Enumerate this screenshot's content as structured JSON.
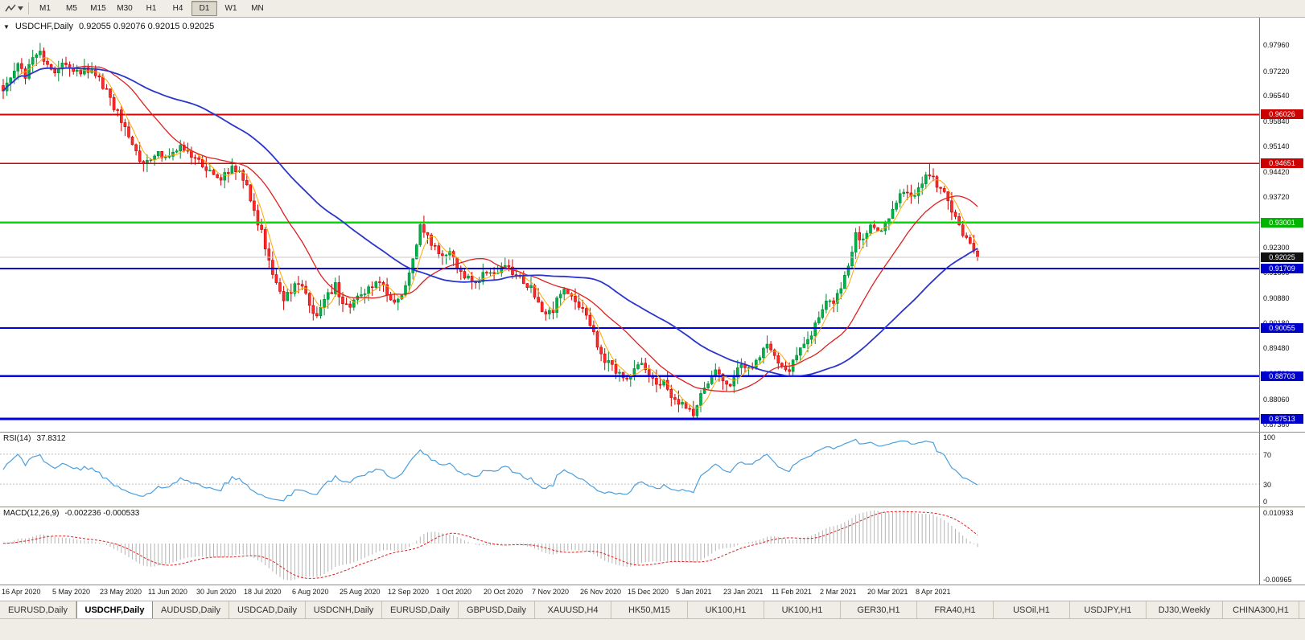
{
  "toolbar": {
    "timeframes": [
      "M1",
      "M5",
      "M15",
      "M30",
      "H1",
      "H4",
      "D1",
      "W1",
      "MN"
    ],
    "active_timeframe": "D1"
  },
  "chart": {
    "symbol_period": "USDCHF,Daily",
    "ohlc": "0.92055 0.92076 0.92015 0.92025",
    "bid": "0.92025"
  },
  "rsi": {
    "label": "RSI(14)",
    "value": "37.8312",
    "color": "#4d9fdc",
    "levels": [
      "100",
      "70",
      "30",
      "0"
    ],
    "dashed_levels": [
      70,
      30
    ]
  },
  "macd": {
    "label": "MACD(12,26,9)",
    "values": "-0.002236 -0.000533",
    "scale_labels": [
      "0.010933",
      "-0.00965"
    ],
    "histogram_color": "#b4b4b4",
    "signal_color": "#e02020"
  },
  "tabs": [
    {
      "label": "EURUSD,Daily",
      "active": false
    },
    {
      "label": "USDCHF,Daily",
      "active": true
    },
    {
      "label": "AUDUSD,Daily",
      "active": false
    },
    {
      "label": "USDCAD,Daily",
      "active": false
    },
    {
      "label": "USDCNH,Daily",
      "active": false
    },
    {
      "label": "EURUSD,Daily",
      "active": false
    },
    {
      "label": "GBPUSD,Daily",
      "active": false
    },
    {
      "label": "XAUUSD,H4",
      "active": false
    },
    {
      "label": "HK50,M15",
      "active": false
    },
    {
      "label": "UK100,H1",
      "active": false
    },
    {
      "label": "UK100,H1",
      "active": false
    },
    {
      "label": "GER30,H1",
      "active": false
    },
    {
      "label": "FRA40,H1",
      "active": false
    },
    {
      "label": "USOil,H1",
      "active": false
    },
    {
      "label": "USDJPY,H1",
      "active": false
    },
    {
      "label": "DJ30,Weekly",
      "active": false
    },
    {
      "label": "CHINA300,H1",
      "active": false
    }
  ],
  "chart_data": {
    "type": "candlestick",
    "symbol": "USDCHF",
    "timeframe": "Daily",
    "y_range": [
      0.8715,
      0.9873
    ],
    "candle_count": 265,
    "x_label_step": 13,
    "x_labels": [
      "16 Apr 2020",
      "5 May 2020",
      "23 May 2020",
      "11 Jun 2020",
      "30 Jun 2020",
      "18 Jul 2020",
      "6 Aug 2020",
      "25 Aug 2020",
      "12 Sep 2020",
      "1 Oct 2020",
      "20 Oct 2020",
      "7 Nov 2020",
      "26 Nov 2020",
      "15 Dec 2020",
      "5 Jan 2021",
      "23 Jan 2021",
      "11 Feb 2021",
      "2 Mar 2021",
      "20 Mar 2021",
      "8 Apr 2021"
    ],
    "scale_labels": [
      "0.97960",
      "0.97220",
      "0.96540",
      "0.95840",
      "0.95140",
      "0.94420",
      "0.93720",
      "0.93020",
      "0.92300",
      "0.91600",
      "0.90880",
      "0.90180",
      "0.89480",
      "0.88780",
      "0.88060",
      "0.87360"
    ],
    "h_lines": [
      {
        "label": "0.96026",
        "price": 0.96026,
        "tag_color": "#cc0000",
        "line_color": "#dd0000",
        "line_width": 2
      },
      {
        "label": "0.94651",
        "price": 0.94651,
        "tag_color": "#cc0000",
        "line_color": "#dd0000",
        "line_width": 1.5
      },
      {
        "label": "0.93001",
        "price": 0.93001,
        "tag_color": "#00b400",
        "line_color": "#00dd00",
        "line_width": 2.5
      },
      {
        "label": "0.91709",
        "price": 0.91709,
        "tag_color": "#0000cc",
        "line_color": "#0000dd",
        "line_width": 2
      },
      {
        "label": "0.90055",
        "price": 0.90055,
        "tag_color": "#0000cc",
        "line_color": "#0000dd",
        "line_width": 2
      },
      {
        "label": "0.88703",
        "price": 0.88703,
        "tag_color": "#0000cc",
        "line_color": "#0000dd",
        "line_width": 2.5
      },
      {
        "label": "0.87513",
        "price": 0.87513,
        "tag_color": "#0000cc",
        "line_color": "#0000dd",
        "line_width": 3
      },
      {
        "label": "0.92025",
        "price": 0.92025,
        "tag_color": "#111111",
        "line_color": "#c8c8c8",
        "line_width": 1
      }
    ],
    "colors": {
      "up_fill": "#00b24a",
      "up_stroke": "#008a36",
      "down_fill": "#ff2a2a",
      "down_stroke": "#cc0000"
    },
    "moving_averages": [
      {
        "name": "fast-ma",
        "period": 5,
        "color": "#ffa800",
        "width": 1
      },
      {
        "name": "medium-ma",
        "period": 20,
        "color": "#e02020",
        "width": 1.3
      },
      {
        "name": "slow-ma",
        "period": 52,
        "color": "#2a35cc",
        "width": 1.8
      }
    ],
    "close_anchors": [
      [
        0,
        0.967
      ],
      [
        2,
        0.9705
      ],
      [
        4,
        0.9738
      ],
      [
        6,
        0.9712
      ],
      [
        8,
        0.9752
      ],
      [
        10,
        0.977
      ],
      [
        12,
        0.9745
      ],
      [
        14,
        0.9708
      ],
      [
        16,
        0.9738
      ],
      [
        18,
        0.9742
      ],
      [
        20,
        0.9716
      ],
      [
        22,
        0.9724
      ],
      [
        24,
        0.9722
      ],
      [
        26,
        0.97
      ],
      [
        28,
        0.9668
      ],
      [
        30,
        0.9625
      ],
      [
        32,
        0.9585
      ],
      [
        34,
        0.9548
      ],
      [
        36,
        0.9505
      ],
      [
        38,
        0.9455
      ],
      [
        40,
        0.9478
      ],
      [
        42,
        0.9502
      ],
      [
        44,
        0.9482
      ],
      [
        46,
        0.9498
      ],
      [
        48,
        0.9512
      ],
      [
        50,
        0.9505
      ],
      [
        52,
        0.9478
      ],
      [
        54,
        0.9465
      ],
      [
        56,
        0.9442
      ],
      [
        58,
        0.9415
      ],
      [
        60,
        0.9438
      ],
      [
        62,
        0.9458
      ],
      [
        64,
        0.944
      ],
      [
        66,
        0.9395
      ],
      [
        68,
        0.933
      ],
      [
        70,
        0.927
      ],
      [
        72,
        0.9185
      ],
      [
        74,
        0.9138
      ],
      [
        76,
        0.9085
      ],
      [
        78,
        0.9112
      ],
      [
        80,
        0.9138
      ],
      [
        82,
        0.9092
      ],
      [
        84,
        0.9038
      ],
      [
        86,
        0.9062
      ],
      [
        88,
        0.9098
      ],
      [
        90,
        0.9122
      ],
      [
        92,
        0.9078
      ],
      [
        94,
        0.9058
      ],
      [
        96,
        0.9088
      ],
      [
        98,
        0.9102
      ],
      [
        100,
        0.9128
      ],
      [
        102,
        0.9142
      ],
      [
        104,
        0.9102
      ],
      [
        106,
        0.9082
      ],
      [
        108,
        0.9108
      ],
      [
        110,
        0.9152
      ],
      [
        112,
        0.9235
      ],
      [
        113,
        0.9288
      ],
      [
        115,
        0.9262
      ],
      [
        117,
        0.9228
      ],
      [
        119,
        0.9202
      ],
      [
        121,
        0.9218
      ],
      [
        123,
        0.9178
      ],
      [
        125,
        0.9152
      ],
      [
        127,
        0.9128
      ],
      [
        129,
        0.9142
      ],
      [
        131,
        0.9158
      ],
      [
        133,
        0.9148
      ],
      [
        135,
        0.9168
      ],
      [
        137,
        0.9172
      ],
      [
        139,
        0.9152
      ],
      [
        141,
        0.9128
      ],
      [
        143,
        0.9118
      ],
      [
        145,
        0.9068
      ],
      [
        147,
        0.9038
      ],
      [
        149,
        0.9058
      ],
      [
        151,
        0.9102
      ],
      [
        153,
        0.9108
      ],
      [
        155,
        0.9082
      ],
      [
        157,
        0.9058
      ],
      [
        159,
        0.9018
      ],
      [
        161,
        0.8958
      ],
      [
        163,
        0.8918
      ],
      [
        165,
        0.8898
      ],
      [
        167,
        0.8878
      ],
      [
        169,
        0.8862
      ],
      [
        171,
        0.8898
      ],
      [
        173,
        0.8908
      ],
      [
        175,
        0.8868
      ],
      [
        177,
        0.8848
      ],
      [
        179,
        0.8862
      ],
      [
        181,
        0.8818
      ],
      [
        183,
        0.8798
      ],
      [
        185,
        0.8782
      ],
      [
        187,
        0.8758
      ],
      [
        189,
        0.8812
      ],
      [
        191,
        0.8858
      ],
      [
        193,
        0.8888
      ],
      [
        195,
        0.8862
      ],
      [
        197,
        0.8852
      ],
      [
        199,
        0.8888
      ],
      [
        201,
        0.8902
      ],
      [
        203,
        0.8892
      ],
      [
        205,
        0.8918
      ],
      [
        207,
        0.8958
      ],
      [
        209,
        0.8932
      ],
      [
        211,
        0.8902
      ],
      [
        213,
        0.8892
      ],
      [
        215,
        0.8922
      ],
      [
        217,
        0.8962
      ],
      [
        219,
        0.8982
      ],
      [
        221,
        0.9038
      ],
      [
        223,
        0.9088
      ],
      [
        225,
        0.9072
      ],
      [
        227,
        0.9118
      ],
      [
        229,
        0.9188
      ],
      [
        231,
        0.9268
      ],
      [
        233,
        0.9252
      ],
      [
        235,
        0.9288
      ],
      [
        237,
        0.9268
      ],
      [
        239,
        0.9302
      ],
      [
        241,
        0.9338
      ],
      [
        243,
        0.9378
      ],
      [
        245,
        0.9392
      ],
      [
        247,
        0.9368
      ],
      [
        249,
        0.9418
      ],
      [
        251,
        0.9438
      ],
      [
        253,
        0.9408
      ],
      [
        255,
        0.9378
      ],
      [
        257,
        0.9338
      ],
      [
        259,
        0.9288
      ],
      [
        261,
        0.9248
      ],
      [
        263,
        0.9218
      ],
      [
        264,
        0.9202
      ]
    ],
    "spikes": [
      [
        10,
        "h",
        0.9802
      ],
      [
        113,
        "h",
        0.9296
      ],
      [
        187,
        "l",
        0.8752
      ],
      [
        251,
        "h",
        0.9466
      ],
      [
        264,
        "c",
        0.92025
      ]
    ]
  }
}
